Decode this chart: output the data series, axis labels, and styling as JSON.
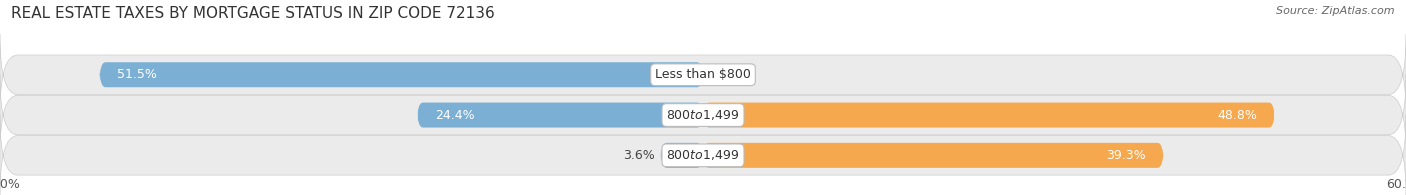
{
  "title": "REAL ESTATE TAXES BY MORTGAGE STATUS IN ZIP CODE 72136",
  "source": "Source: ZipAtlas.com",
  "rows": [
    {
      "label": "Less than $800",
      "without": 51.5,
      "with": 0.0
    },
    {
      "label": "$800 to $1,499",
      "without": 24.4,
      "with": 48.8
    },
    {
      "label": "$800 to $1,499",
      "without": 3.6,
      "with": 39.3
    }
  ],
  "xlim": [
    -60,
    60
  ],
  "color_without": "#7BAFD4",
  "color_with": "#F5A84E",
  "color_without_pale": "#AECDE8",
  "color_with_pale": "#FAD0A0",
  "bar_height": 0.62,
  "row_bg_color": "#EBEBEB",
  "bg_color": "#FFFFFF",
  "title_fontsize": 11,
  "source_fontsize": 8,
  "label_fontsize": 9,
  "value_fontsize": 9,
  "tick_fontsize": 9,
  "legend_fontsize": 9,
  "title_color": "#333333",
  "source_color": "#666666",
  "label_text_color": "#444444",
  "white_label_color": "#FFFFFF"
}
